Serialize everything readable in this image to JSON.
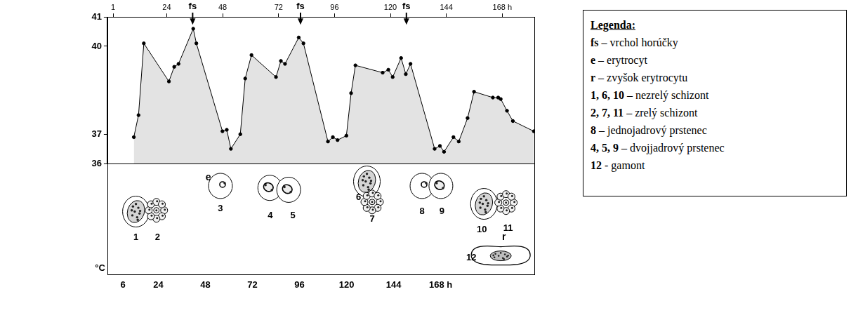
{
  "chart_data": {
    "type": "line",
    "x": [
      11.5,
      13.9,
      16.6,
      29.4,
      32.1,
      34.3,
      41.8,
      43.4,
      56.7,
      58.9,
      61.0,
      65.8,
      68.3,
      71.5,
      84.0,
      86.5,
      88.6,
      95.6,
      98.0,
      110.5,
      113.0,
      115.4,
      119.9,
      122.3,
      124.5,
      138.4,
      141.3,
      143.5,
      147.8,
      150.2,
      152.6,
      164.9,
      167.6,
      169.7,
      174.5,
      177.2,
      181.7,
      185.0,
      194.6,
      197.3,
      198.6,
      201.8,
      204.8,
      215.5
    ],
    "values": [
      36.9,
      37.65,
      40.1,
      38.8,
      39.3,
      39.4,
      40.6,
      40.1,
      37.1,
      37.15,
      36.5,
      37.0,
      38.9,
      39.7,
      38.95,
      39.5,
      39.4,
      40.3,
      40.1,
      36.75,
      36.9,
      36.8,
      36.95,
      38.4,
      39.35,
      39.1,
      39.2,
      38.95,
      39.6,
      39.05,
      39.4,
      36.5,
      36.6,
      36.4,
      36.9,
      36.75,
      37.55,
      38.45,
      38.25,
      38.25,
      38.2,
      37.8,
      37.45,
      37.1
    ],
    "color": "#000000",
    "marker": "circle",
    "grid": false,
    "xlim": [
      -2,
      216
    ],
    "xticks": [
      6,
      24,
      48,
      72,
      96,
      120,
      144,
      {
        "value": 168,
        "label": "168 h"
      }
    ],
    "x2lim": [
      -1.5,
      182
    ],
    "x2ticks": [
      1,
      24,
      48,
      72,
      96,
      120,
      144,
      {
        "value": 168,
        "label": "168 h"
      }
    ],
    "ylim": [
      36,
      41
    ],
    "yticks": [
      36,
      37,
      40,
      41
    ],
    "y_label": "°C",
    "annotations": [
      {
        "x": 41.5,
        "label": "fs"
      },
      {
        "x": 96.5,
        "label": "fs"
      },
      {
        "x": 150.5,
        "label": "fs"
      }
    ],
    "cells": [
      "1",
      "2",
      "3",
      "4",
      "5",
      "6",
      "7",
      "8",
      "9",
      "10",
      "11",
      "12"
    ],
    "key": {
      "title": "Legenda:",
      "entries": [
        {
          "symbol": "fs",
          "text": "– vrchol horúčky"
        },
        {
          "symbol": "e",
          "text": "– erytrocyt"
        },
        {
          "symbol": "r",
          "text": "– zvyšok erytrocytu"
        },
        {
          "symbol": "1, 6, 10",
          "text": "– nezrelý schizont"
        },
        {
          "symbol": "2, 7, 11",
          "text": "– zrelý schizont"
        },
        {
          "symbol": "8",
          "text": "– jednojadrový prstenec"
        },
        {
          "symbol": "4, 5, 9",
          "text": "– dvojjadrový prstenec"
        },
        {
          "symbol": "12",
          "text": "- gamont"
        }
      ]
    }
  }
}
